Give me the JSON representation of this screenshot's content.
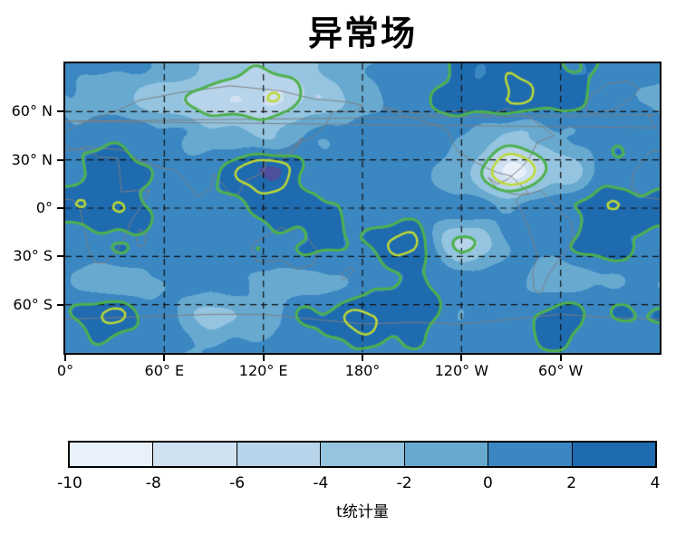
{
  "title": "异常场",
  "chart_data": {
    "type": "heatmap",
    "subtype": "filled-contour-world-map",
    "title": "异常场",
    "xlabel": "",
    "ylabel": "",
    "lon_range": [
      0,
      360
    ],
    "lat_range": [
      -90,
      90
    ],
    "grid_dashed": true,
    "x_ticks": [
      {
        "label": "0°",
        "lon": 0
      },
      {
        "label": "60° E",
        "lon": 60
      },
      {
        "label": "120° E",
        "lon": 120
      },
      {
        "label": "180°",
        "lon": 180
      },
      {
        "label": "120° W",
        "lon": 240
      },
      {
        "label": "60° W",
        "lon": 300
      }
    ],
    "y_ticks": [
      {
        "label": "60° N",
        "lat": 60
      },
      {
        "label": "30° N",
        "lat": 30
      },
      {
        "label": "0°",
        "lat": 0
      },
      {
        "label": "30° S",
        "lat": -30
      },
      {
        "label": "60° S",
        "lat": -60
      }
    ],
    "colorbar": {
      "label": "t统计量",
      "tick_labels": [
        "-10",
        "-8",
        "-6",
        "-4",
        "-2",
        "0",
        "2",
        "4"
      ],
      "levels": [
        -10,
        -8,
        -6,
        -4,
        -2,
        0,
        2,
        4
      ],
      "colors": [
        "#e8f1fa",
        "#d0e1f2",
        "#b7d4ea",
        "#94c4df",
        "#68a9d0",
        "#3a87c2",
        "#1f6bb0"
      ],
      "over_color": "#4d4f9d",
      "over_threshold": 4.3
    },
    "contour_lines": [
      {
        "level": 1.9,
        "color": "#4eb04e",
        "width": 3
      },
      {
        "level": -4.2,
        "color": "#4eb04e",
        "width": 3
      },
      {
        "level": 3.3,
        "color": "#bcd936",
        "width": 2.5
      },
      {
        "level": -6.3,
        "color": "#bcd936",
        "width": 2.5
      }
    ],
    "grid": {
      "lons": [
        0,
        30,
        60,
        90,
        120,
        150,
        180,
        210,
        240,
        270,
        300,
        330,
        360
      ],
      "lats": [
        90,
        67.5,
        45,
        22.5,
        0,
        -22.5,
        -45,
        -67.5,
        -90
      ],
      "values": [
        [
          0.8,
          0.5,
          -0.5,
          -2.5,
          -4.0,
          -2.5,
          0.0,
          1.0,
          1.8,
          2.6,
          2.4,
          1.5,
          0.8
        ],
        [
          -0.5,
          -1.5,
          -3.0,
          -5.5,
          -6.6,
          -4.0,
          -1.0,
          1.0,
          2.6,
          3.6,
          2.8,
          0.8,
          -0.5
        ],
        [
          1.0,
          1.6,
          0.3,
          -1.2,
          -2.0,
          0.2,
          1.2,
          1.6,
          0.4,
          -2.5,
          -0.5,
          1.4,
          1.0
        ],
        [
          1.6,
          2.8,
          1.2,
          1.8,
          5.0,
          1.5,
          1.0,
          1.2,
          -1.5,
          -9.0,
          -3.5,
          1.2,
          1.6
        ],
        [
          2.6,
          3.2,
          1.4,
          1.0,
          2.2,
          2.8,
          0.8,
          1.4,
          1.0,
          0.2,
          1.6,
          2.9,
          2.6
        ],
        [
          1.0,
          2.0,
          1.0,
          0.4,
          1.4,
          2.4,
          2.0,
          3.6,
          -5.0,
          0.2,
          1.4,
          3.0,
          1.0
        ],
        [
          0.4,
          -1.8,
          0.2,
          1.0,
          -0.2,
          -1.0,
          0.6,
          2.4,
          1.0,
          0.6,
          -1.5,
          0.2,
          0.4
        ],
        [
          2.0,
          3.4,
          0.4,
          -2.6,
          -0.8,
          2.0,
          3.6,
          3.0,
          0.2,
          1.2,
          2.9,
          1.6,
          2.0
        ],
        [
          1.0,
          1.4,
          0.8,
          0.0,
          0.8,
          1.4,
          1.8,
          1.4,
          0.8,
          1.4,
          1.8,
          1.4,
          1.0
        ]
      ]
    }
  }
}
